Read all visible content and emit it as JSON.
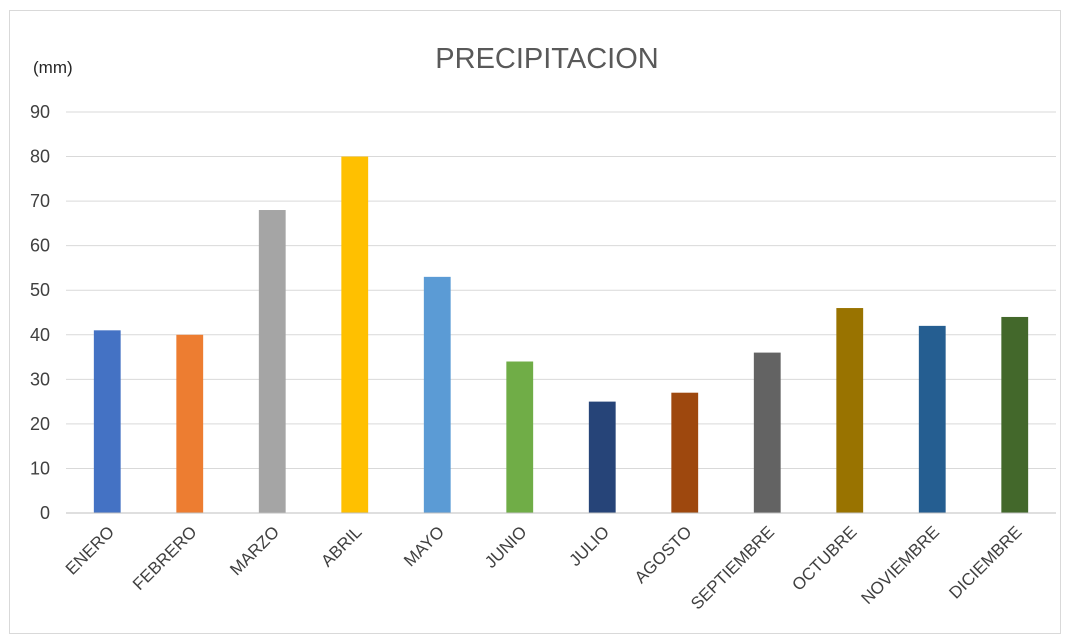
{
  "chart_data": {
    "type": "bar",
    "title": "PRECIPITACION",
    "ylabel": "(mm)",
    "xlabel": "",
    "ylim": [
      0,
      90
    ],
    "yticks": [
      0,
      10,
      20,
      30,
      40,
      50,
      60,
      70,
      80,
      90
    ],
    "grid": true,
    "categories": [
      "ENERO",
      "FEBRERO",
      "MARZO",
      "ABRIL",
      "MAYO",
      "JUNIO",
      "JULIO",
      "AGOSTO",
      "SEPTIEMBRE",
      "OCTUBRE",
      "NOVIEMBRE",
      "DICIEMBRE"
    ],
    "values": [
      41,
      40,
      68,
      80,
      53,
      34,
      25,
      27,
      36,
      46,
      42,
      44
    ],
    "colors": [
      "#4472c4",
      "#ed7d31",
      "#a5a5a5",
      "#ffc000",
      "#5b9bd5",
      "#70ad47",
      "#264478",
      "#9e480e",
      "#636363",
      "#997300",
      "#255e91",
      "#43682b"
    ]
  }
}
